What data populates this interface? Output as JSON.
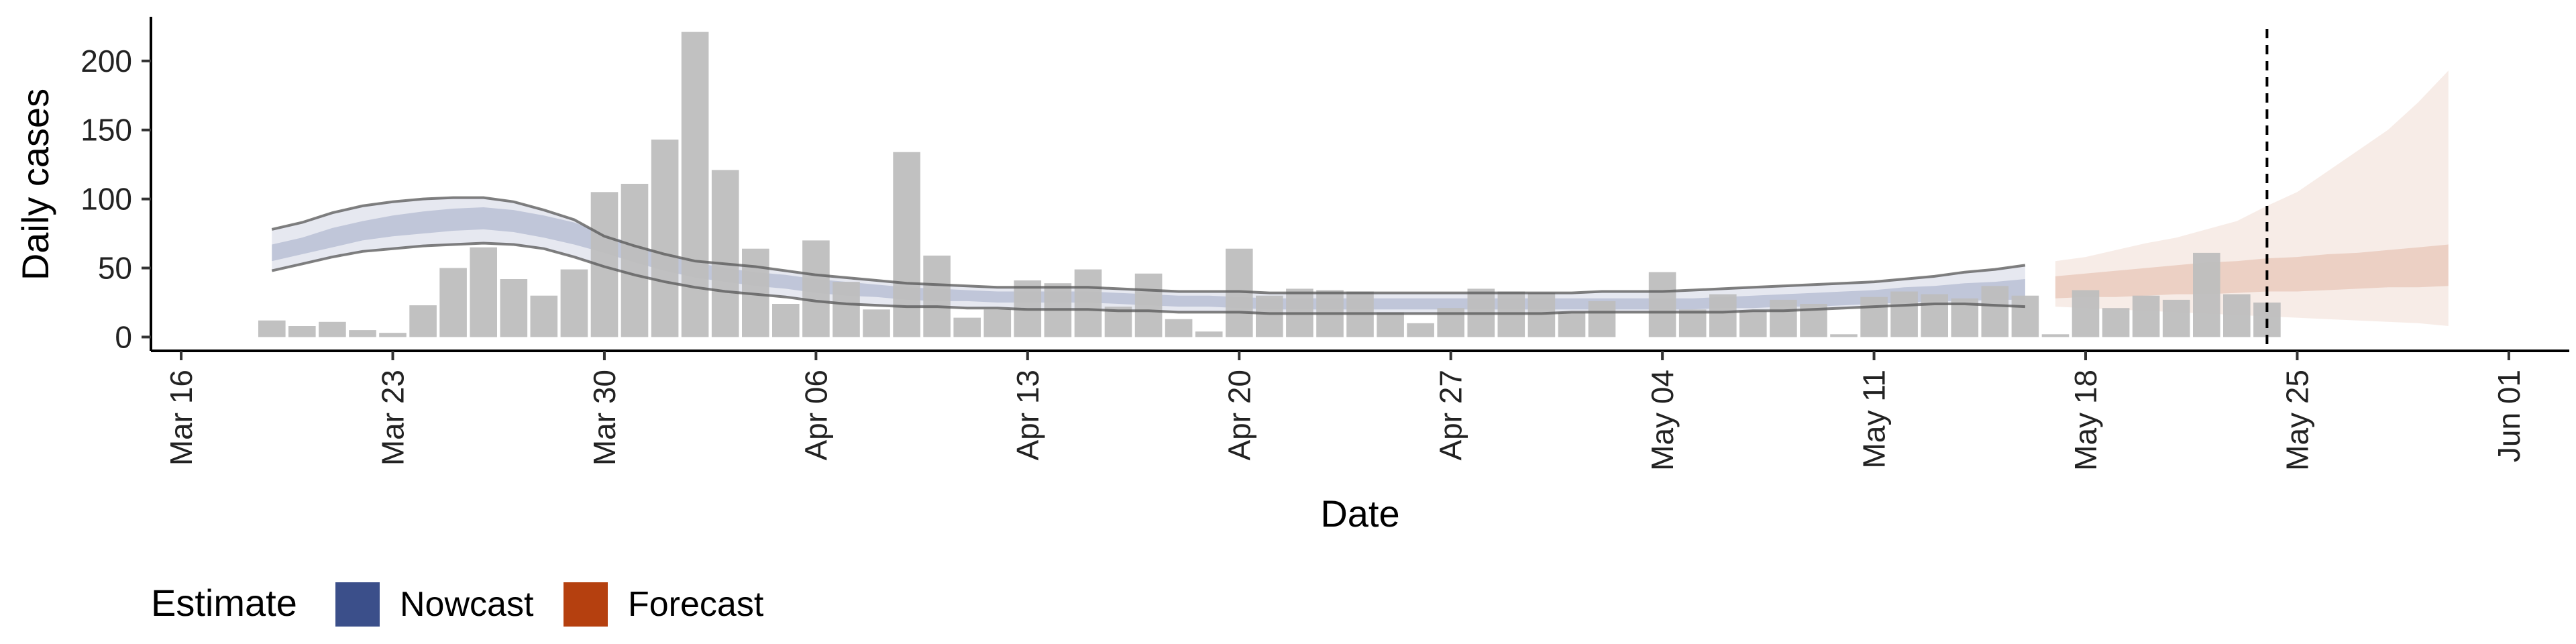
{
  "chart_data": {
    "type": "bar",
    "xlabel": "Date",
    "ylabel": "Daily cases",
    "ylim": [
      -10,
      232
    ],
    "yticks": [
      0,
      50,
      100,
      150,
      200
    ],
    "x_range": [
      "2020-03-15",
      "2020-06-03"
    ],
    "x_tick_dates": [
      "2020-03-16",
      "2020-03-23",
      "2020-03-30",
      "2020-04-06",
      "2020-04-13",
      "2020-04-20",
      "2020-04-27",
      "2020-05-04",
      "2020-05-11",
      "2020-05-18",
      "2020-05-25",
      "2020-06-01"
    ],
    "x_tick_labels": [
      "Mar 16",
      "Mar 23",
      "Mar 30",
      "Apr 06",
      "Apr 13",
      "Apr 20",
      "Apr 27",
      "May 04",
      "May 11",
      "May 18",
      "May 25",
      "Jun 01"
    ],
    "reference_line_date": "2020-05-24",
    "colors": {
      "bars": "#bebebe",
      "nowcast": "#3b4f8a",
      "forecast": "#b5400f",
      "reference_line": "#000000"
    },
    "reported_cases": {
      "start_date": "2020-03-19",
      "values": [
        12,
        8,
        11,
        5,
        3,
        23,
        50,
        65,
        42,
        30,
        49,
        105,
        111,
        143,
        221,
        121,
        64,
        24,
        70,
        40,
        20,
        134,
        59,
        14,
        20,
        41,
        39,
        49,
        22,
        46,
        13,
        4,
        64,
        30,
        35,
        34,
        33,
        18,
        10,
        21,
        35,
        33,
        32,
        18,
        26,
        0,
        47,
        20,
        31,
        19,
        27,
        24,
        2,
        29,
        33,
        31,
        28,
        37,
        30,
        2,
        34,
        21,
        30,
        27,
        61,
        31,
        25
      ]
    },
    "estimates": {
      "start_date": "2020-03-19",
      "nowcast_end_date": "2020-05-16",
      "forecast_start_date": "2020-05-17",
      "forecast_end_date": "2020-05-30",
      "median": [
        60,
        65,
        71,
        75,
        79,
        82,
        84,
        85,
        84,
        80,
        75,
        68,
        60,
        53,
        48,
        45,
        42,
        40,
        37,
        35,
        33,
        31,
        30,
        30,
        29,
        29,
        29,
        29,
        28,
        27,
        26,
        26,
        25,
        24,
        24,
        24,
        24,
        24,
        24,
        24,
        24,
        24,
        24,
        24,
        24,
        24,
        24,
        24,
        25,
        25,
        26,
        27,
        28,
        29,
        30,
        31,
        32,
        33,
        34,
        35,
        36,
        37,
        38,
        39,
        40,
        40,
        42,
        43,
        44,
        45,
        46,
        47,
        48
      ],
      "lower_50": [
        55,
        60,
        65,
        70,
        73,
        75,
        77,
        78,
        76,
        72,
        67,
        61,
        54,
        48,
        43,
        40,
        37,
        35,
        32,
        30,
        29,
        27,
        26,
        26,
        25,
        25,
        25,
        25,
        24,
        23,
        22,
        22,
        21,
        20,
        20,
        20,
        20,
        20,
        20,
        20,
        20,
        20,
        20,
        20,
        20,
        20,
        20,
        20,
        21,
        21,
        22,
        22,
        23,
        24,
        25,
        26,
        26,
        27,
        27,
        28,
        29,
        29,
        30,
        31,
        31,
        32,
        33,
        33,
        34,
        35,
        36,
        36,
        37
      ],
      "upper_50": [
        67,
        72,
        79,
        84,
        88,
        91,
        93,
        94,
        92,
        88,
        83,
        75,
        67,
        60,
        54,
        50,
        47,
        45,
        42,
        40,
        38,
        36,
        35,
        34,
        33,
        33,
        33,
        33,
        32,
        31,
        30,
        30,
        29,
        28,
        28,
        28,
        28,
        28,
        28,
        28,
        28,
        28,
        28,
        28,
        28,
        28,
        28,
        28,
        29,
        30,
        31,
        32,
        33,
        34,
        36,
        37,
        39,
        40,
        42,
        44,
        46,
        48,
        50,
        52,
        54,
        55,
        57,
        58,
        60,
        61,
        63,
        65,
        67
      ],
      "lower_90": [
        48,
        53,
        58,
        62,
        64,
        66,
        67,
        68,
        67,
        64,
        58,
        51,
        45,
        40,
        36,
        33,
        31,
        29,
        26,
        24,
        23,
        22,
        22,
        21,
        21,
        20,
        20,
        20,
        19,
        19,
        18,
        18,
        18,
        17,
        17,
        17,
        17,
        17,
        17,
        17,
        17,
        17,
        17,
        18,
        18,
        18,
        18,
        18,
        18,
        19,
        19,
        20,
        21,
        22,
        23,
        24,
        24,
        23,
        22,
        22,
        21,
        20,
        19,
        18,
        17,
        16,
        15,
        14,
        13,
        12,
        11,
        10,
        8
      ],
      "upper_90": [
        78,
        83,
        90,
        95,
        98,
        100,
        101,
        101,
        98,
        92,
        85,
        73,
        66,
        60,
        55,
        53,
        51,
        48,
        45,
        43,
        41,
        39,
        38,
        37,
        36,
        36,
        36,
        36,
        35,
        34,
        33,
        33,
        33,
        32,
        32,
        32,
        32,
        32,
        32,
        32,
        32,
        32,
        32,
        32,
        33,
        33,
        33,
        34,
        35,
        36,
        37,
        38,
        39,
        40,
        42,
        44,
        47,
        49,
        52,
        55,
        58,
        63,
        68,
        72,
        78,
        84,
        95,
        105,
        120,
        135,
        150,
        170,
        193
      ]
    },
    "legend": {
      "title": "Estimate",
      "position": "bottom-left",
      "entries": [
        {
          "name": "Nowcast",
          "color": "#3b4f8a"
        },
        {
          "name": "Forecast",
          "color": "#b5400f"
        }
      ]
    }
  }
}
